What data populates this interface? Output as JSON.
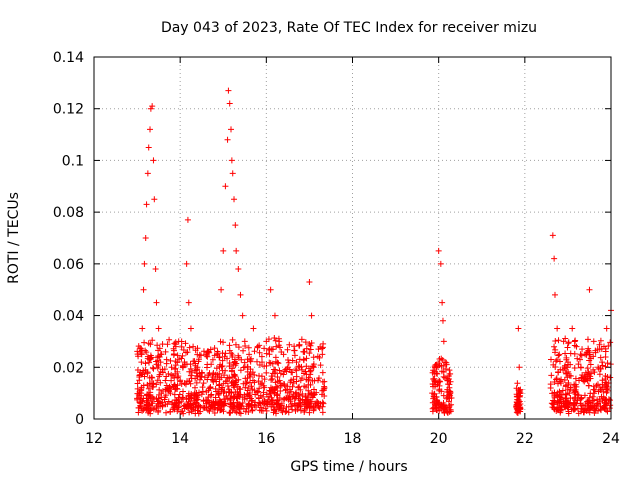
{
  "chart_data": {
    "type": "scatter",
    "title": "Day 043 of 2023, Rate Of TEC Index for receiver mizu",
    "xlabel": "GPS time / hours",
    "ylabel": "ROTI / TECUs",
    "xlim": [
      12,
      24
    ],
    "ylim": [
      0,
      0.14
    ],
    "xticks": [
      12,
      14,
      16,
      18,
      20,
      22,
      24
    ],
    "xtick_labels": [
      "12",
      "14",
      "16",
      "18",
      "20",
      "22",
      "24"
    ],
    "yticks": [
      0,
      0.02,
      0.04,
      0.06,
      0.08,
      0.1,
      0.12,
      0.14
    ],
    "ytick_labels": [
      "0",
      "0.02",
      "0.04",
      "0.06",
      "0.08",
      "0.1",
      "0.12",
      "0.14"
    ],
    "grid": true,
    "marker": "+",
    "marker_color": "#ff0000",
    "series": [
      {
        "name": "ROTI",
        "points": [
          [
            13.0,
            0.008
          ],
          [
            13.05,
            0.015
          ],
          [
            13.1,
            0.022
          ],
          [
            13.12,
            0.035
          ],
          [
            13.15,
            0.05
          ],
          [
            13.17,
            0.06
          ],
          [
            13.2,
            0.07
          ],
          [
            13.22,
            0.083
          ],
          [
            13.25,
            0.095
          ],
          [
            13.27,
            0.105
          ],
          [
            13.3,
            0.112
          ],
          [
            13.32,
            0.12
          ],
          [
            13.35,
            0.121
          ],
          [
            13.38,
            0.1
          ],
          [
            13.4,
            0.085
          ],
          [
            13.43,
            0.058
          ],
          [
            13.45,
            0.045
          ],
          [
            13.5,
            0.035
          ],
          [
            13.55,
            0.025
          ],
          [
            13.6,
            0.018
          ],
          [
            13.7,
            0.012
          ],
          [
            13.8,
            0.02
          ],
          [
            13.9,
            0.028
          ],
          [
            14.0,
            0.015
          ],
          [
            14.1,
            0.022
          ],
          [
            14.15,
            0.06
          ],
          [
            14.18,
            0.077
          ],
          [
            14.2,
            0.045
          ],
          [
            14.25,
            0.035
          ],
          [
            14.3,
            0.028
          ],
          [
            14.4,
            0.02
          ],
          [
            14.5,
            0.018
          ],
          [
            14.6,
            0.025
          ],
          [
            14.7,
            0.012
          ],
          [
            14.9,
            0.01
          ],
          [
            14.95,
            0.05
          ],
          [
            15.0,
            0.065
          ],
          [
            15.05,
            0.09
          ],
          [
            15.1,
            0.108
          ],
          [
            15.12,
            0.127
          ],
          [
            15.15,
            0.122
          ],
          [
            15.18,
            0.112
          ],
          [
            15.2,
            0.1
          ],
          [
            15.22,
            0.095
          ],
          [
            15.25,
            0.085
          ],
          [
            15.28,
            0.075
          ],
          [
            15.3,
            0.065
          ],
          [
            15.35,
            0.058
          ],
          [
            15.4,
            0.048
          ],
          [
            15.45,
            0.04
          ],
          [
            15.5,
            0.03
          ],
          [
            15.6,
            0.025
          ],
          [
            15.7,
            0.035
          ],
          [
            15.8,
            0.028
          ],
          [
            15.9,
            0.022
          ],
          [
            16.0,
            0.03
          ],
          [
            16.1,
            0.05
          ],
          [
            16.2,
            0.04
          ],
          [
            16.3,
            0.03
          ],
          [
            16.4,
            0.025
          ],
          [
            16.5,
            0.02
          ],
          [
            16.6,
            0.018
          ],
          [
            16.7,
            0.022
          ],
          [
            16.8,
            0.015
          ],
          [
            17.0,
            0.053
          ],
          [
            17.05,
            0.04
          ],
          [
            17.1,
            0.02
          ],
          [
            17.2,
            0.015
          ],
          [
            17.3,
            0.025
          ],
          [
            17.35,
            0.012
          ],
          [
            19.85,
            0.01
          ],
          [
            19.9,
            0.015
          ],
          [
            19.95,
            0.02
          ],
          [
            20.0,
            0.065
          ],
          [
            20.05,
            0.06
          ],
          [
            20.08,
            0.045
          ],
          [
            20.1,
            0.038
          ],
          [
            20.12,
            0.03
          ],
          [
            20.15,
            0.022
          ],
          [
            20.2,
            0.015
          ],
          [
            20.25,
            0.008
          ],
          [
            21.8,
            0.005
          ],
          [
            21.85,
            0.035
          ],
          [
            21.87,
            0.02
          ],
          [
            21.9,
            0.01
          ],
          [
            22.6,
            0.012
          ],
          [
            22.65,
            0.071
          ],
          [
            22.68,
            0.062
          ],
          [
            22.7,
            0.048
          ],
          [
            22.75,
            0.035
          ],
          [
            22.8,
            0.025
          ],
          [
            22.9,
            0.03
          ],
          [
            23.0,
            0.022
          ],
          [
            23.1,
            0.035
          ],
          [
            23.2,
            0.028
          ],
          [
            23.3,
            0.02
          ],
          [
            23.4,
            0.025
          ],
          [
            23.5,
            0.05
          ],
          [
            23.6,
            0.03
          ],
          [
            23.7,
            0.02
          ],
          [
            23.8,
            0.015
          ],
          [
            23.9,
            0.035
          ],
          [
            24.0,
            0.042
          ]
        ]
      }
    ],
    "dense_bands": [
      {
        "from": 13.0,
        "to": 14.7,
        "min": 0.002,
        "max": 0.028
      },
      {
        "from": 14.7,
        "to": 17.35,
        "min": 0.002,
        "max": 0.028
      },
      {
        "from": 19.85,
        "to": 20.3,
        "min": 0.002,
        "max": 0.02
      },
      {
        "from": 21.8,
        "to": 21.9,
        "min": 0.002,
        "max": 0.012
      },
      {
        "from": 22.6,
        "to": 24.0,
        "min": 0.002,
        "max": 0.028
      }
    ]
  }
}
